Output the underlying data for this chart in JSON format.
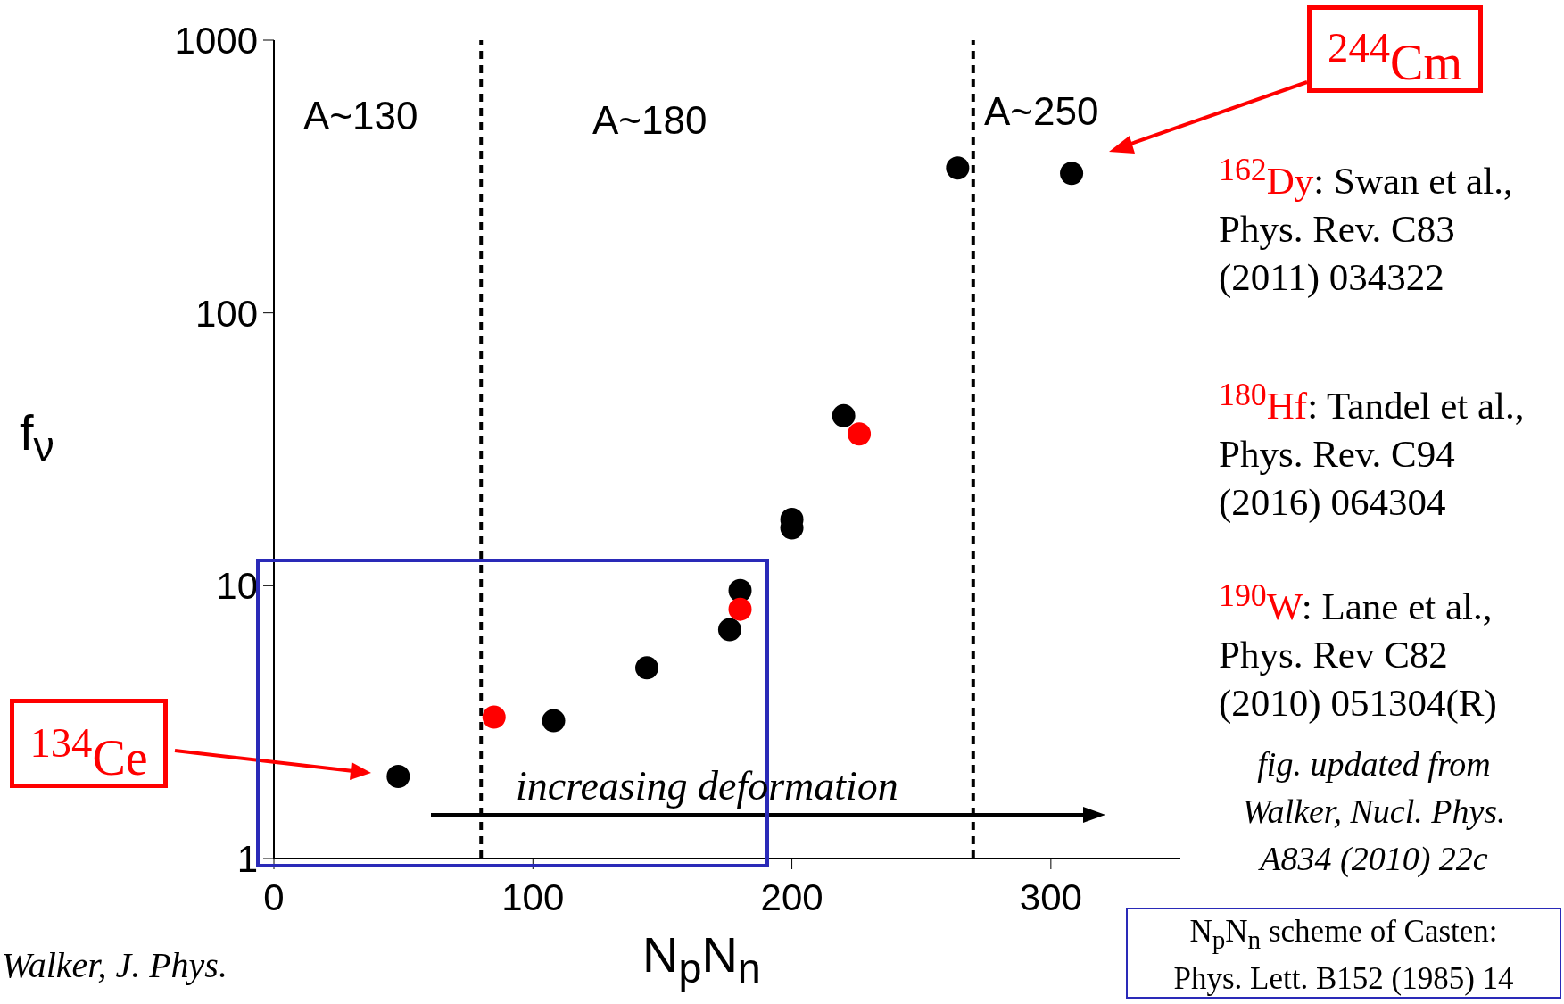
{
  "chart_data": {
    "type": "scatter",
    "xlabel": "N$_{p}$N$_{n}$",
    "ylabel": "f$_{ν}$",
    "log": "y",
    "xlim": [
      0,
      350
    ],
    "xticks": [
      0,
      100,
      200,
      300
    ],
    "ylim": [
      1,
      1000
    ],
    "yticks": [
      1,
      10,
      100,
      1000
    ],
    "marker": "circle",
    "series": [
      {
        "color": "#000000",
        "x": [
          48,
          108,
          144,
          176,
          180,
          200,
          200,
          220,
          264,
          308
        ],
        "values": [
          2.0,
          3.2,
          5.0,
          6.9,
          9.6,
          17.5,
          16.3,
          42,
          340,
          325
        ]
      },
      {
        "color": "#ff0000",
        "x": [
          85,
          180,
          226
        ],
        "values": [
          3.3,
          8.2,
          36
        ]
      }
    ],
    "ref_lines": [
      {
        "axis": "x",
        "value": 80,
        "line_style": "dashed",
        "color": "#000000"
      },
      {
        "axis": "x",
        "value": 270,
        "line_style": "dashed",
        "color": "#000000"
      }
    ],
    "annotations": [
      "A~130",
      "A~180",
      "A~250",
      "$^{244}$Cm",
      "$^{134}$Ce",
      "increasing deformation",
      "$^{162}$Dy: Swan et al., Phys. Rev. C83 (2011) 034322",
      "$^{180}$Hf: Tandel et al., Phys. Rev. C94 (2016) 064304",
      "$^{190}$W: Lane et al., Phys. Rev C82 (2010) 051304(R)",
      "fig. updated from Walker, Nucl. Phys. A834 (2010) 22c",
      "N$_{p}$N$_{n}$ scheme of Casten: Phys. Lett. B152 (1985) 14",
      "Walker, J. Phys."
    ]
  }
}
